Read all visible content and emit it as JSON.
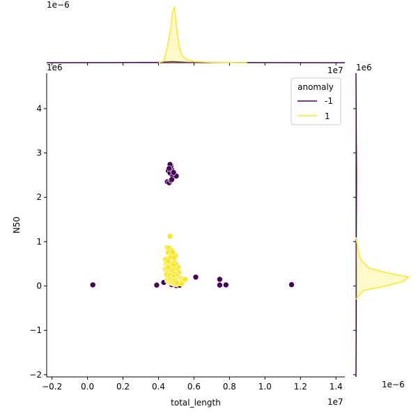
{
  "chart_data": {
    "type": "scatter",
    "xlabel": "total_length",
    "ylabel": "N50",
    "x_offset_label": "1e7",
    "y_offset_label": "1e6",
    "top_marginal_offset_label": "1e−6",
    "top_marginal_x_offset_label": "1e7",
    "right_marginal_offset_label": "1e−6",
    "right_marginal_y_offset_label": "1e6",
    "xlim": [
      -2300000,
      14500000
    ],
    "ylim": [
      -2050000,
      4800000
    ],
    "x_ticks": [
      -2000000,
      0,
      2000000,
      4000000,
      6000000,
      8000000,
      10000000,
      12000000,
      14000000
    ],
    "x_tick_labels": [
      "−0.2",
      "0.0",
      "0.2",
      "0.4",
      "0.6",
      "0.8",
      "1.0",
      "1.2",
      "1.4"
    ],
    "y_ticks": [
      -2000000,
      -1000000,
      0,
      1000000,
      2000000,
      3000000,
      4000000
    ],
    "y_tick_labels": [
      "−2",
      "−1",
      "0",
      "1",
      "2",
      "3",
      "4"
    ],
    "legend": {
      "title": "anomaly",
      "placement": "top-right",
      "entries": [
        {
          "label": "-1",
          "color": "#440154"
        },
        {
          "label": "1",
          "color": "#fde725"
        }
      ]
    },
    "series": [
      {
        "name": "-1",
        "color": "#440154",
        "points": [
          [
            300000,
            25000
          ],
          [
            3900000,
            20000
          ],
          [
            4300000,
            80000
          ],
          [
            4500000,
            2350000
          ],
          [
            4600000,
            2330000
          ],
          [
            4700000,
            2380000
          ],
          [
            4550000,
            2600000
          ],
          [
            4650000,
            2550000
          ],
          [
            4750000,
            2620000
          ],
          [
            4700000,
            2700000
          ],
          [
            4650000,
            2740000
          ],
          [
            4600000,
            2650000
          ],
          [
            4800000,
            2480000
          ],
          [
            5000000,
            2480000
          ],
          [
            4850000,
            2560000
          ],
          [
            4750000,
            2400000
          ],
          [
            4750000,
            30000
          ],
          [
            5000000,
            10000
          ],
          [
            5200000,
            15000
          ],
          [
            6100000,
            200000
          ],
          [
            7450000,
            150000
          ],
          [
            7450000,
            20000
          ],
          [
            7800000,
            25000
          ],
          [
            11500000,
            30000
          ]
        ]
      },
      {
        "name": "1",
        "color": "#fde725",
        "points": [
          [
            4650000,
            1120000
          ],
          [
            4500000,
            870000
          ],
          [
            4600000,
            850000
          ],
          [
            4750000,
            800000
          ],
          [
            4850000,
            720000
          ],
          [
            4950000,
            680000
          ],
          [
            4550000,
            750000
          ],
          [
            4700000,
            700000
          ],
          [
            4400000,
            600000
          ],
          [
            4600000,
            620000
          ],
          [
            4800000,
            580000
          ],
          [
            4900000,
            550000
          ],
          [
            5000000,
            480000
          ],
          [
            5100000,
            420000
          ],
          [
            4450000,
            500000
          ],
          [
            4550000,
            450000
          ],
          [
            4650000,
            520000
          ],
          [
            4750000,
            430000
          ],
          [
            4850000,
            470000
          ],
          [
            4950000,
            380000
          ],
          [
            5050000,
            350000
          ],
          [
            5150000,
            300000
          ],
          [
            4400000,
            380000
          ],
          [
            4500000,
            320000
          ],
          [
            4600000,
            360000
          ],
          [
            4700000,
            300000
          ],
          [
            4800000,
            340000
          ],
          [
            4900000,
            280000
          ],
          [
            5000000,
            250000
          ],
          [
            5100000,
            220000
          ],
          [
            5200000,
            180000
          ],
          [
            5300000,
            160000
          ],
          [
            5400000,
            140000
          ],
          [
            4450000,
            250000
          ],
          [
            4550000,
            200000
          ],
          [
            4650000,
            240000
          ],
          [
            4750000,
            180000
          ],
          [
            4850000,
            210000
          ],
          [
            4950000,
            150000
          ],
          [
            5050000,
            120000
          ],
          [
            5150000,
            100000
          ],
          [
            5250000,
            90000
          ],
          [
            5350000,
            110000
          ],
          [
            5500000,
            150000
          ],
          [
            4500000,
            120000
          ],
          [
            4600000,
            100000
          ],
          [
            4700000,
            80000
          ],
          [
            4800000,
            60000
          ],
          [
            4900000,
            50000
          ],
          [
            5000000,
            40000
          ],
          [
            5100000,
            60000
          ],
          [
            4650000,
            150000
          ],
          [
            4750000,
            120000
          ],
          [
            4850000,
            90000
          ],
          [
            4950000,
            110000
          ],
          [
            5050000,
            70000
          ],
          [
            5300000,
            50000
          ],
          [
            4550000,
            420000
          ],
          [
            4700000,
            650000
          ],
          [
            4800000,
            760000
          ],
          [
            4520000,
            560000
          ],
          [
            4880000,
            640000
          ]
        ]
      }
    ],
    "marginal_x_density": {
      "axis_max": 1.5e-06,
      "series": [
        {
          "name": "-1",
          "color": "#440154",
          "x": [
            -2300000,
            1000000,
            4000000,
            4800000,
            5600000,
            8000000,
            14500000
          ],
          "density": [
            0,
            2e-09,
            1e-08,
            3e-08,
            1e-08,
            3e-09,
            0
          ]
        },
        {
          "name": "1",
          "color": "#fde725",
          "x": [
            4000000,
            4300000,
            4500000,
            4700000,
            4800000,
            4900000,
            5000000,
            5150000,
            5300000,
            5600000,
            6000000,
            7000000,
            9000000
          ],
          "density": [
            0,
            4e-08,
            4e-07,
            9.5e-07,
            1.35e-06,
            1.45e-06,
            1e-06,
            4.5e-07,
            2e-07,
            8e-08,
            3e-08,
            1e-08,
            0
          ]
        }
      ]
    },
    "marginal_y_density": {
      "axis_max": 1.5e-06,
      "series": [
        {
          "name": "-1",
          "color": "#440154",
          "y": [
            -2050000,
            -1000000,
            0,
            1000000,
            2500000,
            3500000,
            4800000
          ],
          "density": [
            0,
            5e-09,
            1e-08,
            8e-09,
            1.5e-08,
            8e-09,
            0
          ]
        },
        {
          "name": "1",
          "color": "#fde725",
          "y": [
            -300000,
            -100000,
            0,
            100000,
            200000,
            300000,
            400000,
            600000,
            800000,
            950000,
            1100000
          ],
          "density": [
            0,
            2e-07,
            8e-07,
            1.25e-06,
            1.4e-06,
            8e-07,
            3.5e-07,
            1.2e-07,
            6e-08,
            3e-08,
            0
          ]
        }
      ]
    }
  }
}
